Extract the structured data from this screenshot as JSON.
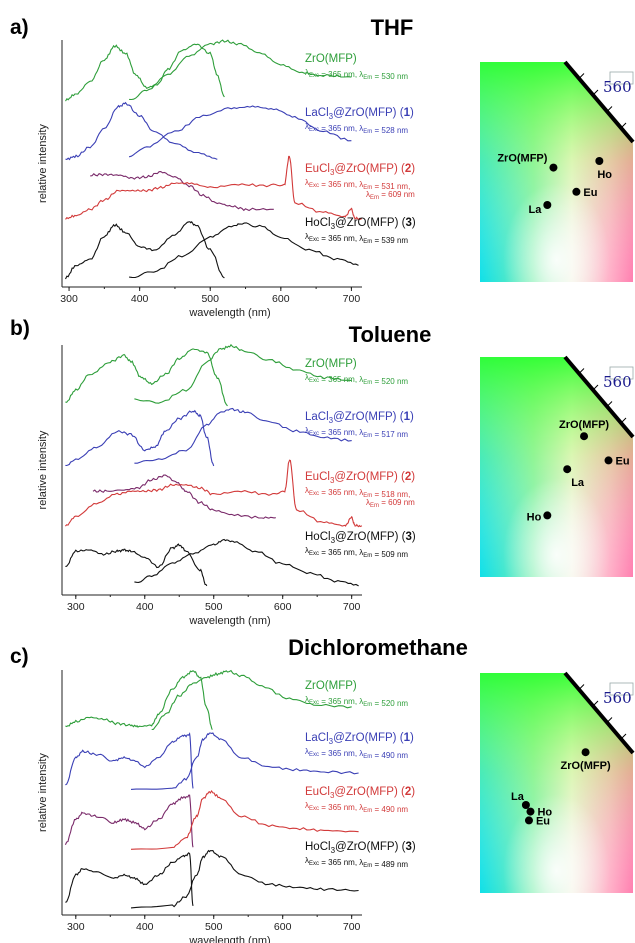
{
  "colors": {
    "ZrO(MFP)": "#2e9e3a",
    "LaCl3@ZrO(MFP)": "#3a3fb5",
    "EuCl3@ZrO(MFP)": "#d23a3a",
    "EuCl3@ZrO(MFP)-excitation": "#7a2a6a",
    "HoCl3@ZrO(MFP)": "#111111"
  },
  "chart_data": [
    {
      "type": "line",
      "panel": "a)",
      "title": "THF",
      "xlabel": "wavelength (nm)",
      "ylabel": "relative intensity",
      "xlim": [
        290,
        715
      ],
      "xticks": [
        300,
        400,
        500,
        600,
        700
      ],
      "grid": false,
      "series": [
        {
          "name": "ZrO(MFP)",
          "kind": "excitation",
          "offset": 3,
          "x": [
            295,
            310,
            330,
            350,
            365,
            380,
            395,
            410,
            425,
            440,
            460,
            480,
            500,
            510,
            520
          ],
          "y": [
            0.05,
            0.15,
            0.35,
            0.7,
            0.92,
            0.8,
            0.45,
            0.25,
            0.3,
            0.55,
            0.85,
            0.95,
            0.8,
            0.45,
            0.1
          ]
        },
        {
          "name": "ZrO(MFP)",
          "kind": "emission",
          "offset": 3,
          "x": [
            385,
            410,
            440,
            470,
            500,
            520,
            540,
            570,
            600,
            630,
            660,
            700
          ],
          "y": [
            0.05,
            0.2,
            0.45,
            0.75,
            0.95,
            1.0,
            0.95,
            0.8,
            0.62,
            0.5,
            0.45,
            0.42
          ]
        },
        {
          "name": "LaCl3@ZrO(MFP)",
          "kind": "excitation",
          "offset": 2,
          "x": [
            295,
            310,
            330,
            350,
            370,
            380,
            400,
            420,
            450,
            480,
            510
          ],
          "y": [
            0.05,
            0.1,
            0.25,
            0.55,
            0.9,
            0.95,
            0.75,
            0.5,
            0.3,
            0.15,
            0.05
          ]
        },
        {
          "name": "LaCl3@ZrO(MFP)",
          "kind": "emission",
          "offset": 2,
          "x": [
            385,
            410,
            450,
            490,
            530,
            560,
            590,
            620,
            660,
            700
          ],
          "y": [
            0.1,
            0.25,
            0.5,
            0.75,
            0.88,
            0.9,
            0.85,
            0.72,
            0.5,
            0.35
          ]
        },
        {
          "name": "EuCl3@ZrO(MFP)",
          "kind": "excitation",
          "offset": 1,
          "x": [
            330,
            350,
            370,
            390,
            410,
            430,
            450,
            470,
            490,
            510,
            530,
            550,
            590
          ],
          "y": [
            0.75,
            0.76,
            0.75,
            0.7,
            0.72,
            0.8,
            0.72,
            0.58,
            0.42,
            0.3,
            0.25,
            0.2,
            0.2
          ]
        },
        {
          "name": "EuCl3@ZrO(MFP)",
          "kind": "emission",
          "offset": 1,
          "x": [
            295,
            310,
            330,
            350,
            370,
            390,
            410,
            430,
            450,
            470,
            500,
            540,
            580,
            605,
            612,
            620,
            660,
            690,
            700,
            705,
            715
          ],
          "y": [
            0.05,
            0.1,
            0.2,
            0.35,
            0.5,
            0.5,
            0.5,
            0.55,
            0.62,
            0.62,
            0.55,
            0.6,
            0.58,
            0.6,
            1.05,
            0.3,
            0.15,
            0.08,
            0.2,
            0.05,
            0.05
          ]
        },
        {
          "name": "HoCl3@ZrO(MFP)",
          "kind": "excitation",
          "offset": 0,
          "x": [
            295,
            310,
            330,
            350,
            365,
            380,
            400,
            420,
            450,
            470,
            480,
            500,
            520
          ],
          "y": [
            0.05,
            0.25,
            0.35,
            0.72,
            0.9,
            0.78,
            0.55,
            0.5,
            0.75,
            0.95,
            0.9,
            0.5,
            0.05
          ]
        },
        {
          "name": "HoCl3@ZrO(MFP)",
          "kind": "emission",
          "offset": 0,
          "x": [
            385,
            420,
            460,
            500,
            530,
            545,
            570,
            600,
            640,
            680,
            710
          ],
          "y": [
            0.05,
            0.15,
            0.4,
            0.7,
            0.88,
            0.92,
            0.88,
            0.7,
            0.5,
            0.35,
            0.25
          ]
        }
      ],
      "labels": [
        {
          "name": "ZrO(MFP)",
          "exc": "365",
          "em": "530"
        },
        {
          "name": "LaCl3@ZrO(MFP)",
          "num": "1",
          "exc": "365",
          "em": "528"
        },
        {
          "name": "EuCl3@ZrO(MFP)",
          "num": "2",
          "exc": "365",
          "em": "531",
          "em2": "609"
        },
        {
          "name": "HoCl3@ZrO(MFP)",
          "num": "3",
          "exc": "365",
          "em": "539"
        }
      ],
      "cie": {
        "tick": "560",
        "points": [
          {
            "label": "ZrO(MFP)",
            "x": 0.48,
            "y": 0.48
          },
          {
            "label": "Ho",
            "x": 0.78,
            "y": 0.45
          },
          {
            "label": "Eu",
            "x": 0.63,
            "y": 0.59
          },
          {
            "label": "La",
            "x": 0.44,
            "y": 0.65
          }
        ]
      }
    },
    {
      "type": "line",
      "panel": "b)",
      "title": "Toluene",
      "xlabel": "wavelength (nm)",
      "ylabel": "relative intensity",
      "xlim": [
        280,
        715
      ],
      "xticks": [
        300,
        400,
        500,
        600,
        700
      ],
      "grid": false,
      "series": [
        {
          "name": "ZrO(MFP)",
          "kind": "excitation",
          "offset": 3,
          "x": [
            285,
            300,
            320,
            350,
            370,
            380,
            395,
            410,
            430,
            450,
            470,
            490,
            505,
            520
          ],
          "y": [
            0.1,
            0.3,
            0.55,
            0.75,
            0.85,
            0.75,
            0.5,
            0.4,
            0.55,
            0.8,
            0.95,
            0.9,
            0.5,
            0.05
          ]
        },
        {
          "name": "ZrO(MFP)",
          "kind": "emission",
          "offset": 3,
          "x": [
            385,
            420,
            460,
            490,
            510,
            525,
            545,
            580,
            620,
            660,
            700
          ],
          "y": [
            0.15,
            0.1,
            0.3,
            0.75,
            0.95,
            1.0,
            0.92,
            0.78,
            0.62,
            0.5,
            0.45
          ]
        },
        {
          "name": "LaCl3@ZrO(MFP)",
          "kind": "excitation",
          "offset": 2,
          "x": [
            285,
            300,
            330,
            360,
            380,
            400,
            415,
            430,
            450,
            470,
            480,
            490,
            500
          ],
          "y": [
            0.05,
            0.15,
            0.35,
            0.6,
            0.55,
            0.3,
            0.35,
            0.6,
            0.8,
            0.92,
            0.85,
            0.5,
            0.05
          ]
        },
        {
          "name": "LaCl3@ZrO(MFP)",
          "kind": "emission",
          "offset": 2,
          "x": [
            385,
            420,
            460,
            490,
            510,
            525,
            545,
            580,
            620,
            660,
            700
          ],
          "y": [
            0.1,
            0.15,
            0.3,
            0.7,
            0.9,
            0.95,
            0.9,
            0.75,
            0.6,
            0.5,
            0.45
          ]
        },
        {
          "name": "EuCl3@ZrO(MFP)",
          "kind": "excitation",
          "offset": 1,
          "x": [
            325,
            345,
            370,
            390,
            410,
            430,
            445,
            460,
            480,
            500,
            530,
            570,
            590
          ],
          "y": [
            0.6,
            0.6,
            0.62,
            0.65,
            0.78,
            0.85,
            0.75,
            0.6,
            0.42,
            0.3,
            0.22,
            0.18,
            0.18
          ]
        },
        {
          "name": "EuCl3@ZrO(MFP)",
          "kind": "emission",
          "offset": 1,
          "x": [
            285,
            300,
            330,
            360,
            380,
            400,
            420,
            440,
            460,
            480,
            500,
            540,
            580,
            603,
            610,
            620,
            660,
            690,
            700,
            705,
            715
          ],
          "y": [
            0.05,
            0.2,
            0.4,
            0.55,
            0.6,
            0.6,
            0.62,
            0.7,
            0.7,
            0.65,
            0.55,
            0.6,
            0.55,
            0.6,
            1.1,
            0.3,
            0.1,
            0.05,
            0.18,
            0.05,
            0.05
          ]
        },
        {
          "name": "HoCl3@ZrO(MFP)",
          "kind": "excitation",
          "offset": 0,
          "x": [
            285,
            300,
            320,
            340,
            360,
            370,
            380,
            400,
            420,
            440,
            450,
            460,
            480,
            490
          ],
          "y": [
            0.35,
            0.6,
            0.62,
            0.55,
            0.6,
            0.62,
            0.6,
            0.5,
            0.35,
            0.65,
            0.7,
            0.6,
            0.3,
            0.05
          ]
        },
        {
          "name": "HoCl3@ZrO(MFP)",
          "kind": "emission",
          "offset": 0,
          "x": [
            385,
            410,
            440,
            470,
            500,
            515,
            530,
            560,
            600,
            640,
            680,
            710
          ],
          "y": [
            0.1,
            0.2,
            0.4,
            0.55,
            0.7,
            0.78,
            0.75,
            0.6,
            0.4,
            0.25,
            0.12,
            0.05
          ]
        }
      ],
      "labels": [
        {
          "name": "ZrO(MFP)",
          "exc": "365",
          "em": "520"
        },
        {
          "name": "LaCl3@ZrO(MFP)",
          "num": "1",
          "exc": "365",
          "em": "517"
        },
        {
          "name": "EuCl3@ZrO(MFP)",
          "num": "2",
          "exc": "365",
          "em": "518",
          "em2": "609"
        },
        {
          "name": "HoCl3@ZrO(MFP)",
          "num": "3",
          "exc": "365",
          "em": "509"
        }
      ],
      "cie": {
        "tick": "560",
        "points": [
          {
            "label": "ZrO(MFP)",
            "x": 0.68,
            "y": 0.36
          },
          {
            "label": "Eu",
            "x": 0.84,
            "y": 0.47
          },
          {
            "label": "La",
            "x": 0.57,
            "y": 0.51
          },
          {
            "label": "Ho",
            "x": 0.44,
            "y": 0.72
          }
        ]
      }
    },
    {
      "type": "line",
      "panel": "c)",
      "title": "Dichloromethane",
      "xlabel": "wavelength (nm)",
      "ylabel": "relative intensity",
      "xlim": [
        280,
        715
      ],
      "xticks": [
        300,
        400,
        500,
        600,
        700
      ],
      "grid": false,
      "series": [
        {
          "name": "ZrO(MFP)",
          "kind": "excitation",
          "offset": 3,
          "x": [
            285,
            300,
            320,
            340,
            360,
            380,
            390,
            410,
            420,
            440,
            455,
            470,
            480,
            490,
            498
          ],
          "y": [
            0.1,
            0.18,
            0.25,
            0.22,
            0.15,
            0.12,
            0.1,
            0.12,
            0.3,
            0.7,
            0.9,
            1.0,
            0.9,
            0.4,
            0.05
          ]
        },
        {
          "name": "ZrO(MFP)",
          "kind": "emission",
          "offset": 3,
          "x": [
            410,
            430,
            450,
            470,
            490,
            505,
            520,
            540,
            570,
            610,
            650,
            700
          ],
          "y": [
            0.05,
            0.3,
            0.6,
            0.8,
            0.9,
            0.95,
            1.0,
            0.92,
            0.75,
            0.55,
            0.45,
            0.42
          ]
        },
        {
          "name": "LaCl3@ZrO(MFP)",
          "kind": "excitation",
          "offset": 2,
          "x": [
            285,
            300,
            310,
            330,
            355,
            370,
            385,
            400,
            420,
            440,
            455,
            465,
            470
          ],
          "y": [
            0.1,
            0.55,
            0.65,
            0.6,
            0.5,
            0.55,
            0.5,
            0.4,
            0.55,
            0.8,
            0.9,
            0.92,
            0.05
          ]
        },
        {
          "name": "LaCl3@ZrO(MFP)",
          "kind": "emission",
          "offset": 2,
          "x": [
            380,
            440,
            460,
            475,
            485,
            495,
            510,
            540,
            580,
            620,
            660,
            710
          ],
          "y": [
            0.02,
            0.05,
            0.2,
            0.55,
            0.85,
            0.95,
            0.85,
            0.55,
            0.4,
            0.35,
            0.32,
            0.3
          ]
        },
        {
          "name": "EuCl3@ZrO(MFP)",
          "kind": "excitation",
          "offset": 1,
          "x": [
            285,
            300,
            310,
            330,
            355,
            370,
            385,
            400,
            420,
            440,
            455,
            465,
            470
          ],
          "y": [
            0.1,
            0.5,
            0.6,
            0.55,
            0.45,
            0.5,
            0.45,
            0.35,
            0.5,
            0.75,
            0.85,
            0.88,
            0.05
          ]
        },
        {
          "name": "EuCl3@ZrO(MFP)",
          "kind": "emission",
          "offset": 1,
          "x": [
            380,
            440,
            460,
            475,
            485,
            495,
            510,
            540,
            580,
            620,
            660,
            710
          ],
          "y": [
            0.02,
            0.05,
            0.2,
            0.55,
            0.85,
            0.95,
            0.85,
            0.55,
            0.4,
            0.35,
            0.32,
            0.3
          ]
        },
        {
          "name": "HoCl3@ZrO(MFP)",
          "kind": "excitation",
          "offset": 0,
          "x": [
            285,
            300,
            310,
            330,
            355,
            370,
            385,
            400,
            420,
            440,
            455,
            465,
            470
          ],
          "y": [
            0.1,
            0.55,
            0.65,
            0.6,
            0.5,
            0.55,
            0.5,
            0.4,
            0.55,
            0.75,
            0.85,
            0.9,
            0.05
          ]
        },
        {
          "name": "HoCl3@ZrO(MFP)",
          "kind": "emission",
          "offset": 0,
          "x": [
            380,
            440,
            460,
            475,
            485,
            495,
            510,
            540,
            580,
            620,
            660,
            710
          ],
          "y": [
            0.02,
            0.05,
            0.2,
            0.55,
            0.85,
            0.95,
            0.85,
            0.55,
            0.4,
            0.35,
            0.32,
            0.3
          ]
        }
      ],
      "labels": [
        {
          "name": "ZrO(MFP)",
          "exc": "365",
          "em": "520"
        },
        {
          "name": "LaCl3@ZrO(MFP)",
          "num": "1",
          "exc": "365",
          "em": "490"
        },
        {
          "name": "EuCl3@ZrO(MFP)",
          "num": "2",
          "exc": "365",
          "em": "490"
        },
        {
          "name": "HoCl3@ZrO(MFP)",
          "num": "3",
          "exc": "365",
          "em": "489"
        }
      ],
      "cie": {
        "tick": "560",
        "points": [
          {
            "label": "ZrO(MFP)",
            "x": 0.69,
            "y": 0.36
          },
          {
            "label": "La",
            "x": 0.3,
            "y": 0.6
          },
          {
            "label": "Ho",
            "x": 0.33,
            "y": 0.63
          },
          {
            "label": "Eu",
            "x": 0.32,
            "y": 0.67
          }
        ]
      }
    }
  ]
}
